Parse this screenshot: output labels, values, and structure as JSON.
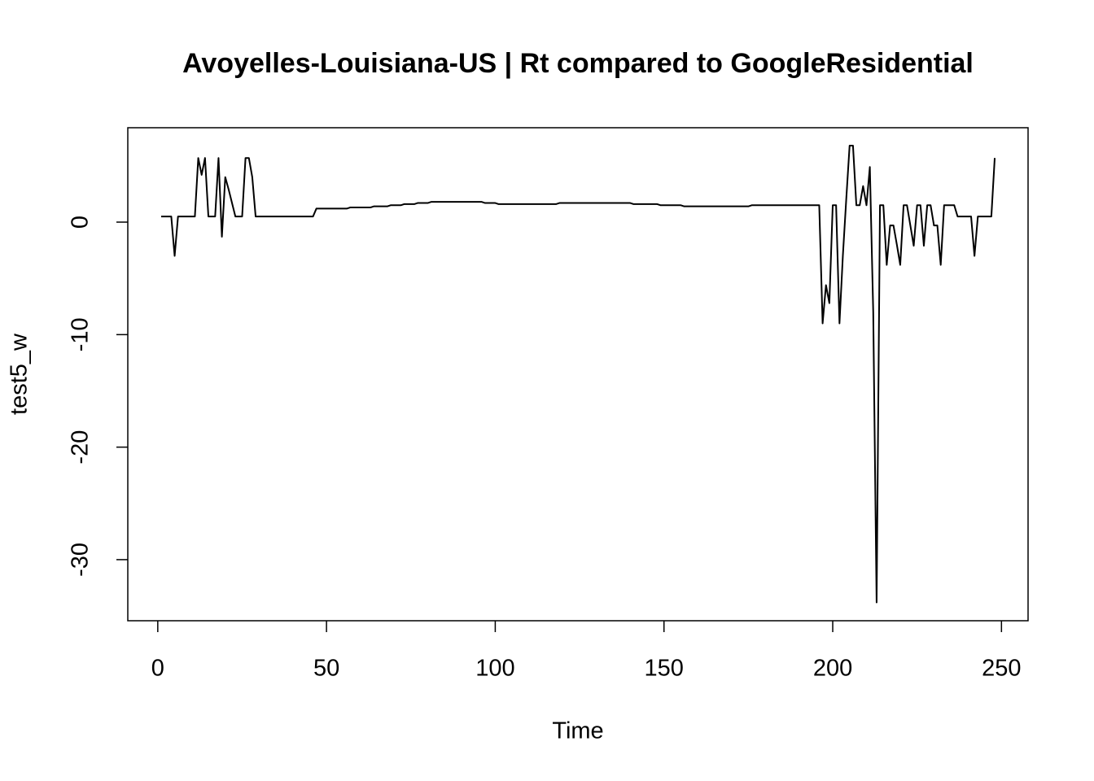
{
  "chart_data": {
    "type": "line",
    "title": "Avoyelles-Louisiana-US | Rt compared to GoogleResidential",
    "x_label": "Time",
    "y_label": "test5_w",
    "color": "#000000",
    "xlim": [
      -8.88,
      257.88
    ],
    "ylim": [
      -35.43,
      8.39
    ],
    "xticks": [
      0,
      50,
      100,
      150,
      200,
      250
    ],
    "yticks": [
      -30,
      -20,
      -10,
      0
    ],
    "x": [
      1,
      2,
      3,
      4,
      5,
      6,
      7,
      8,
      9,
      10,
      11,
      12,
      13,
      14,
      15,
      16,
      17,
      18,
      19,
      20,
      21,
      22,
      23,
      24,
      25,
      26,
      27,
      28,
      29,
      30,
      31,
      32,
      33,
      34,
      35,
      36,
      37,
      38,
      39,
      40,
      41,
      42,
      43,
      44,
      45,
      46,
      47,
      48,
      49,
      50,
      51,
      52,
      53,
      54,
      55,
      56,
      57,
      58,
      59,
      60,
      61,
      62,
      63,
      64,
      65,
      66,
      67,
      68,
      69,
      70,
      71,
      72,
      73,
      74,
      75,
      76,
      77,
      78,
      79,
      80,
      81,
      82,
      83,
      84,
      85,
      86,
      87,
      88,
      89,
      90,
      91,
      92,
      93,
      94,
      95,
      96,
      97,
      98,
      99,
      100,
      101,
      102,
      103,
      104,
      105,
      106,
      107,
      108,
      109,
      110,
      111,
      112,
      113,
      114,
      115,
      116,
      117,
      118,
      119,
      120,
      121,
      122,
      123,
      124,
      125,
      126,
      127,
      128,
      129,
      130,
      131,
      132,
      133,
      134,
      135,
      136,
      137,
      138,
      139,
      140,
      141,
      142,
      143,
      144,
      145,
      146,
      147,
      148,
      149,
      150,
      151,
      152,
      153,
      154,
      155,
      156,
      157,
      158,
      159,
      160,
      161,
      162,
      163,
      164,
      165,
      166,
      167,
      168,
      169,
      170,
      171,
      172,
      173,
      174,
      175,
      176,
      177,
      178,
      179,
      180,
      181,
      182,
      183,
      184,
      185,
      186,
      187,
      188,
      189,
      190,
      191,
      192,
      193,
      194,
      195,
      196,
      197,
      198,
      199,
      200,
      201,
      202,
      203,
      204,
      205,
      206,
      207,
      208,
      209,
      210,
      211,
      212,
      213,
      214,
      215,
      216,
      217,
      218,
      219,
      220,
      221,
      222,
      223,
      224,
      225,
      226,
      227,
      228,
      229,
      230,
      231,
      232,
      233,
      234,
      235,
      236,
      237,
      238,
      239,
      240,
      241,
      242,
      243,
      244,
      245,
      246,
      247,
      248
    ],
    "values": [
      0.5,
      0.5,
      0.5,
      0.5,
      -3,
      0.5,
      0.5,
      0.5,
      0.5,
      0.5,
      0.5,
      5.7,
      4.2,
      5.7,
      0.5,
      0.5,
      0.5,
      5.7,
      -1.3,
      4,
      2.9,
      1.7,
      0.5,
      0.5,
      0.5,
      5.7,
      5.7,
      4,
      0.5,
      0.5,
      0.5,
      0.5,
      0.5,
      0.5,
      0.5,
      0.5,
      0.5,
      0.5,
      0.5,
      0.5,
      0.5,
      0.5,
      0.5,
      0.5,
      0.5,
      0.5,
      1.2,
      1.2,
      1.2,
      1.2,
      1.2,
      1.2,
      1.2,
      1.2,
      1.2,
      1.2,
      1.3,
      1.3,
      1.3,
      1.3,
      1.3,
      1.3,
      1.3,
      1.4,
      1.4,
      1.4,
      1.4,
      1.4,
      1.5,
      1.5,
      1.5,
      1.5,
      1.6,
      1.6,
      1.6,
      1.6,
      1.7,
      1.7,
      1.7,
      1.7,
      1.8,
      1.8,
      1.8,
      1.8,
      1.8,
      1.8,
      1.8,
      1.8,
      1.8,
      1.8,
      1.8,
      1.8,
      1.8,
      1.8,
      1.8,
      1.8,
      1.7,
      1.7,
      1.7,
      1.7,
      1.6,
      1.6,
      1.6,
      1.6,
      1.6,
      1.6,
      1.6,
      1.6,
      1.6,
      1.6,
      1.6,
      1.6,
      1.6,
      1.6,
      1.6,
      1.6,
      1.6,
      1.6,
      1.7,
      1.7,
      1.7,
      1.7,
      1.7,
      1.7,
      1.7,
      1.7,
      1.7,
      1.7,
      1.7,
      1.7,
      1.7,
      1.7,
      1.7,
      1.7,
      1.7,
      1.7,
      1.7,
      1.7,
      1.7,
      1.7,
      1.6,
      1.6,
      1.6,
      1.6,
      1.6,
      1.6,
      1.6,
      1.6,
      1.5,
      1.5,
      1.5,
      1.5,
      1.5,
      1.5,
      1.5,
      1.4,
      1.4,
      1.4,
      1.4,
      1.4,
      1.4,
      1.4,
      1.4,
      1.4,
      1.4,
      1.4,
      1.4,
      1.4,
      1.4,
      1.4,
      1.4,
      1.4,
      1.4,
      1.4,
      1.4,
      1.5,
      1.5,
      1.5,
      1.5,
      1.5,
      1.5,
      1.5,
      1.5,
      1.5,
      1.5,
      1.5,
      1.5,
      1.5,
      1.5,
      1.5,
      1.5,
      1.5,
      1.5,
      1.5,
      1.5,
      1.5,
      -9,
      -5.6,
      -7.2,
      1.5,
      1.5,
      -9,
      -3,
      2,
      6.8,
      6.8,
      1.5,
      1.5,
      3.2,
      1.5,
      4.9,
      -8,
      -33.8,
      1.5,
      1.5,
      -3.8,
      -0.3,
      -0.3,
      -2,
      -3.8,
      1.5,
      1.5,
      -0.3,
      -2.1,
      1.5,
      1.5,
      -2.1,
      1.5,
      1.5,
      -0.3,
      -0.3,
      -3.8,
      1.5,
      1.5,
      1.5,
      1.5,
      0.5,
      0.5,
      0.5,
      0.5,
      0.5,
      -3,
      0.5,
      0.5,
      0.5,
      0.5,
      0.5,
      5.7
    ]
  }
}
